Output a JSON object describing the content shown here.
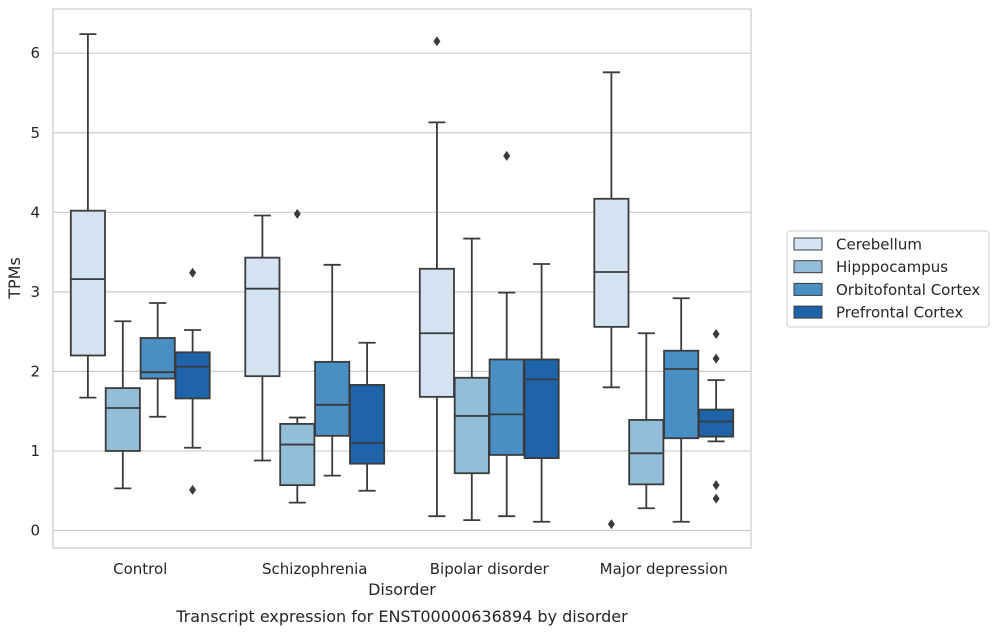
{
  "chart_data": {
    "type": "boxplot",
    "caption": "Transcript expression for ENST00000636894 by disorder",
    "xlabel": "Disorder",
    "ylabel": "TPMs",
    "ylim": [
      -0.2,
      6.55
    ],
    "yticks": [
      0,
      1,
      2,
      3,
      4,
      5,
      6
    ],
    "ytick_labels": [
      "0",
      "1",
      "2",
      "3",
      "4",
      "5",
      "6"
    ],
    "grid": "horizontal",
    "legend_position": "right",
    "categories": [
      "Control",
      "Schizophrenia",
      "Bipolar disorder",
      "Major depression"
    ],
    "series": [
      {
        "name": "Cerebellum",
        "color": "#d3e3f2",
        "boxes": [
          {
            "whislo": 1.67,
            "q1": 2.2,
            "med": 3.16,
            "q3": 4.02,
            "whishi": 6.24,
            "fliers": []
          },
          {
            "whislo": 0.88,
            "q1": 1.94,
            "med": 3.04,
            "q3": 3.43,
            "whishi": 3.96,
            "fliers": []
          },
          {
            "whislo": 0.18,
            "q1": 1.68,
            "med": 2.48,
            "q3": 3.29,
            "whishi": 5.13,
            "fliers": [
              6.15
            ]
          },
          {
            "whislo": 1.8,
            "q1": 2.56,
            "med": 3.25,
            "q3": 4.17,
            "whishi": 5.76,
            "fliers": [
              0.08
            ]
          }
        ]
      },
      {
        "name": "Hipppocampus",
        "color": "#92bed9",
        "boxes": [
          {
            "whislo": 0.53,
            "q1": 1.0,
            "med": 1.54,
            "q3": 1.79,
            "whishi": 2.63,
            "fliers": []
          },
          {
            "whislo": 0.35,
            "q1": 0.57,
            "med": 1.08,
            "q3": 1.34,
            "whishi": 1.42,
            "fliers": [
              3.98
            ]
          },
          {
            "whislo": 0.13,
            "q1": 0.72,
            "med": 1.44,
            "q3": 1.92,
            "whishi": 3.67,
            "fliers": []
          },
          {
            "whislo": 0.28,
            "q1": 0.58,
            "med": 0.97,
            "q3": 1.39,
            "whishi": 2.48,
            "fliers": []
          }
        ]
      },
      {
        "name": "Orbitofontal Cortex",
        "color": "#4a8fc3",
        "boxes": [
          {
            "whislo": 1.43,
            "q1": 1.91,
            "med": 1.99,
            "q3": 2.42,
            "whishi": 2.86,
            "fliers": []
          },
          {
            "whislo": 0.69,
            "q1": 1.19,
            "med": 1.58,
            "q3": 2.12,
            "whishi": 3.34,
            "fliers": []
          },
          {
            "whislo": 0.18,
            "q1": 0.95,
            "med": 1.46,
            "q3": 2.15,
            "whishi": 2.99,
            "fliers": [
              4.71
            ]
          },
          {
            "whislo": 0.11,
            "q1": 1.16,
            "med": 2.03,
            "q3": 2.26,
            "whishi": 2.92,
            "fliers": []
          }
        ]
      },
      {
        "name": "Prefrontal Cortex",
        "color": "#1f63a8",
        "boxes": [
          {
            "whislo": 1.04,
            "q1": 1.66,
            "med": 2.06,
            "q3": 2.24,
            "whishi": 2.52,
            "fliers": [
              3.24,
              0.51
            ]
          },
          {
            "whislo": 0.5,
            "q1": 0.84,
            "med": 1.1,
            "q3": 1.83,
            "whishi": 2.36,
            "fliers": []
          },
          {
            "whislo": 0.11,
            "q1": 0.91,
            "med": 1.9,
            "q3": 2.15,
            "whishi": 3.35,
            "fliers": []
          },
          {
            "whislo": 1.12,
            "q1": 1.18,
            "med": 1.37,
            "q3": 1.52,
            "whishi": 1.89,
            "fliers": [
              2.47,
              2.16,
              0.57,
              0.4
            ]
          }
        ]
      }
    ]
  },
  "colors": {
    "grid": "#cccccc",
    "frame": "#cccccc",
    "line": "#3b3b3b",
    "text": "#262626"
  }
}
